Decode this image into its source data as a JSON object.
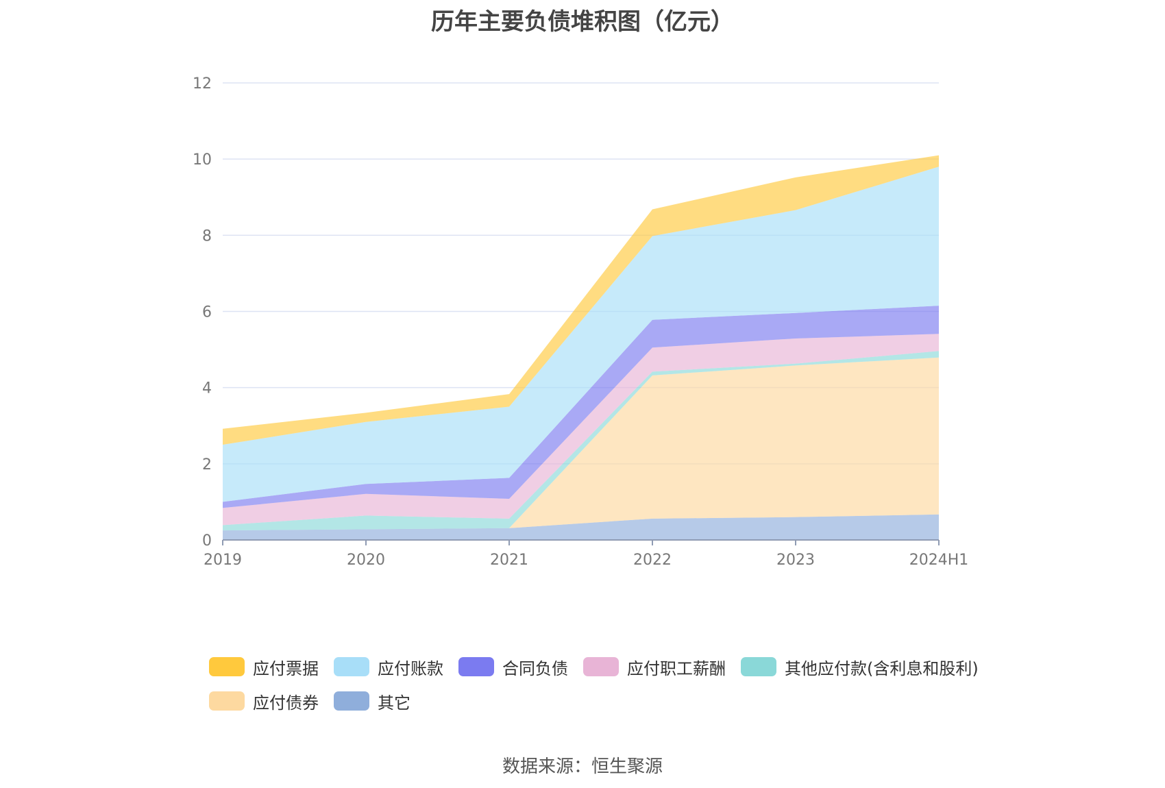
{
  "page": {
    "title": "历年主要负债堆积图（亿元）",
    "source": "数据来源：恒生聚源"
  },
  "chart_data": {
    "type": "area",
    "stacked": true,
    "categories": [
      "2019",
      "2020",
      "2021",
      "2022",
      "2023",
      "2024H1"
    ],
    "ylim": [
      0,
      12
    ],
    "yticks": [
      0,
      2,
      4,
      6,
      8,
      10,
      12
    ],
    "grid": true,
    "legend_position": "bottom",
    "series": [
      {
        "name": "其它",
        "color": "#8FAEDB",
        "values": [
          0.25,
          0.28,
          0.31,
          0.56,
          0.6,
          0.67
        ]
      },
      {
        "name": "应付债券",
        "color": "#FDD9A0",
        "values": [
          0,
          0,
          0,
          3.76,
          3.98,
          4.12
        ]
      },
      {
        "name": "其他应付款(含利息和股利)",
        "color": "#8AD8D8",
        "values": [
          0.14,
          0.36,
          0.25,
          0.1,
          0.05,
          0.17
        ]
      },
      {
        "name": "应付职工薪酬",
        "color": "#E8B4D6",
        "values": [
          0.45,
          0.57,
          0.52,
          0.63,
          0.66,
          0.45
        ]
      },
      {
        "name": "合同负债",
        "color": "#7B7BF0",
        "values": [
          0.16,
          0.26,
          0.55,
          0.73,
          0.67,
          0.74
        ]
      },
      {
        "name": "应付账款",
        "color": "#A8DEF8",
        "values": [
          1.5,
          1.63,
          1.87,
          2.2,
          2.7,
          3.65
        ]
      },
      {
        "name": "应付票据",
        "color": "#FFC93D",
        "values": [
          0.42,
          0.24,
          0.33,
          0.7,
          0.86,
          0.3
        ]
      }
    ]
  },
  "legend": {
    "row1": [
      "应付票据",
      "应付账款",
      "合同负债",
      "应付职工薪酬",
      "其他应付款(含利息和股利)"
    ],
    "row2": [
      "应付债券",
      "其它"
    ]
  }
}
